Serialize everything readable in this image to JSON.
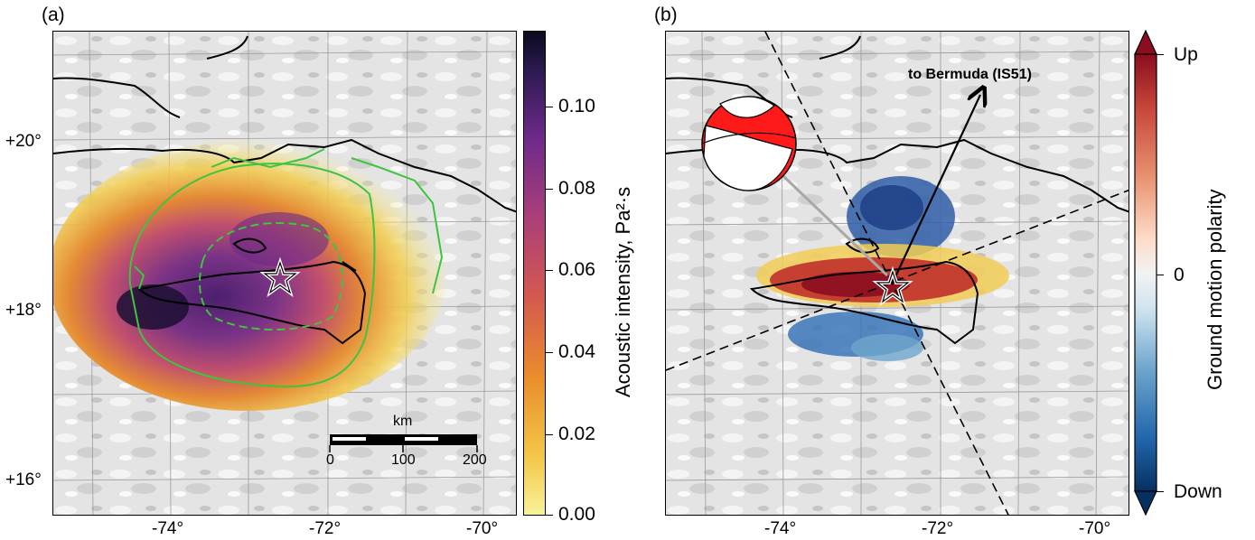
{
  "panel_a": {
    "label": "(a)",
    "lat_labels": [
      "+20°",
      "+18°",
      "+16°"
    ],
    "lon_labels": [
      "-74°",
      "-72°",
      "-70°"
    ],
    "scalebar": {
      "unit": "km",
      "ticks": [
        "0",
        "100",
        "200"
      ]
    },
    "colorbar": {
      "title": "Acoustic intensity, Pa²·s",
      "ticks": [
        "0.10",
        "0.08",
        "0.06",
        "0.04",
        "0.02",
        "0.00"
      ],
      "colormap": [
        "#f7f39a",
        "#f3c748",
        "#ea8f2b",
        "#d4594f",
        "#a93e7a",
        "#6d2a8a",
        "#2c1a4f",
        "#0b0a1f"
      ]
    },
    "icons": [
      "epicenter-star-icon"
    ]
  },
  "panel_b": {
    "label": "(b)",
    "lon_labels": [
      "-74°",
      "-72°",
      "-70°"
    ],
    "arrow_label": "to Bermuda (IS51)",
    "colorbar": {
      "title": "Ground motion polarity",
      "ticks": [
        "Up",
        "0",
        "Down"
      ],
      "colormap": [
        "#053061",
        "#2166ac",
        "#6ea6cd",
        "#d1e5f0",
        "#f2f2f2",
        "#fddbc7",
        "#e8916f",
        "#c6453a",
        "#8b0d1f"
      ]
    },
    "icons": [
      "epicenter-star-icon",
      "focal-mechanism-beachball-icon"
    ]
  }
}
